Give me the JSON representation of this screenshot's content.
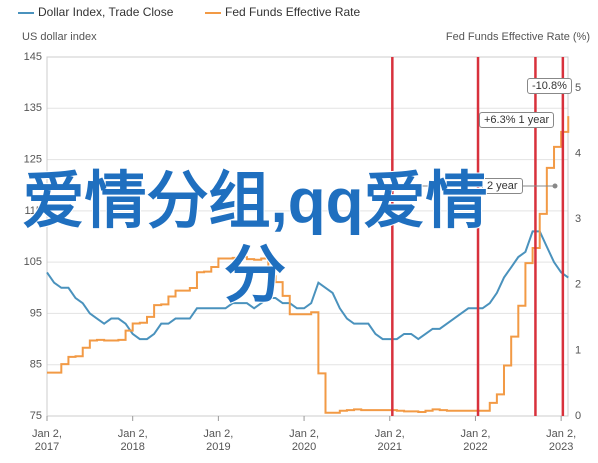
{
  "chart_data": {
    "type": "line",
    "legend": [
      "Dollar Index, Trade Close",
      "Fed Funds Effective Rate"
    ],
    "y_label": "US dollar index",
    "y2_label": "Fed Funds Effective Rate (%)",
    "xlim": [
      2017,
      2023.08
    ],
    "xticks": [
      {
        "value": 2017,
        "label": "Jan 2, 2017"
      },
      {
        "value": 2018,
        "label": "Jan 2, 2018"
      },
      {
        "value": 2019,
        "label": "Jan 2, 2019"
      },
      {
        "value": 2020,
        "label": "Jan 2, 2020"
      },
      {
        "value": 2021,
        "label": "Jan 2, 2021"
      },
      {
        "value": 2022,
        "label": "Jan 2, 2022"
      },
      {
        "value": 2023,
        "label": "Jan 2, 2023"
      }
    ],
    "ylim": [
      75,
      145
    ],
    "yticks": [
      75,
      85,
      95,
      105,
      115,
      125,
      135,
      145
    ],
    "y2lim": [
      0,
      5.47
    ],
    "y2ticks": [
      0,
      1,
      2,
      3,
      4,
      5
    ],
    "grid": true,
    "x": [
      2017,
      2017.083,
      2017.167,
      2017.25,
      2017.333,
      2017.417,
      2017.5,
      2017.583,
      2017.667,
      2017.75,
      2017.833,
      2017.917,
      2018,
      2018.083,
      2018.167,
      2018.25,
      2018.333,
      2018.417,
      2018.5,
      2018.583,
      2018.667,
      2018.75,
      2018.833,
      2018.917,
      2019,
      2019.083,
      2019.167,
      2019.25,
      2019.333,
      2019.417,
      2019.5,
      2019.583,
      2019.667,
      2019.75,
      2019.833,
      2019.917,
      2020,
      2020.083,
      2020.167,
      2020.25,
      2020.333,
      2020.417,
      2020.5,
      2020.583,
      2020.667,
      2020.75,
      2020.833,
      2020.917,
      2021,
      2021.083,
      2021.167,
      2021.25,
      2021.333,
      2021.417,
      2021.5,
      2021.583,
      2021.667,
      2021.75,
      2021.833,
      2021.917,
      2022,
      2022.083,
      2022.167,
      2022.25,
      2022.333,
      2022.417,
      2022.5,
      2022.583,
      2022.667,
      2022.75,
      2022.833,
      2022.917,
      2023,
      2023.083
    ],
    "series": [
      {
        "name": "Dollar Index, Trade Close",
        "color": "#4a92bd",
        "axis": "y",
        "values": [
          103,
          101,
          100,
          100,
          98,
          97,
          95,
          94,
          93,
          94,
          94,
          93,
          91,
          90,
          90,
          91,
          93,
          93,
          94,
          94,
          94,
          96,
          96,
          96,
          96,
          96,
          97,
          97,
          97,
          96,
          97,
          98,
          98,
          97,
          97,
          96,
          96,
          97,
          101,
          100,
          99,
          96,
          94,
          93,
          93,
          93,
          91,
          90,
          90,
          90,
          91,
          91,
          90,
          91,
          92,
          92,
          93,
          94,
          95,
          96,
          96,
          96,
          97,
          99,
          102,
          104,
          106,
          107,
          111,
          111,
          108,
          105,
          103,
          102
        ]
      },
      {
        "name": "Fed Funds Effective Rate",
        "color": "#f29a45",
        "axis": "y2",
        "step": true,
        "values": [
          0.66,
          0.66,
          0.79,
          0.9,
          0.91,
          1.04,
          1.15,
          1.16,
          1.15,
          1.15,
          1.16,
          1.3,
          1.41,
          1.42,
          1.51,
          1.69,
          1.7,
          1.82,
          1.91,
          1.91,
          1.95,
          2.19,
          2.2,
          2.27,
          2.4,
          2.4,
          2.41,
          2.42,
          2.39,
          2.38,
          2.4,
          2.13,
          2.04,
          1.83,
          1.55,
          1.55,
          1.55,
          1.58,
          0.65,
          0.05,
          0.05,
          0.08,
          0.09,
          0.1,
          0.09,
          0.09,
          0.09,
          0.09,
          0.09,
          0.08,
          0.07,
          0.07,
          0.06,
          0.08,
          0.1,
          0.09,
          0.08,
          0.08,
          0.08,
          0.08,
          0.08,
          0.08,
          0.2,
          0.33,
          0.77,
          1.21,
          1.68,
          2.33,
          2.56,
          3.08,
          3.78,
          4.1,
          4.33,
          4.57
        ]
      }
    ],
    "markers": {
      "x": [
        2021.03,
        2022.03,
        2022.7,
        2023.02
      ],
      "color": "#d8313c"
    },
    "annotations": [
      "-10.8%",
      "+6.3% 1 year",
      "2 year"
    ],
    "overlay": "爱情分组,qq爱情分"
  }
}
